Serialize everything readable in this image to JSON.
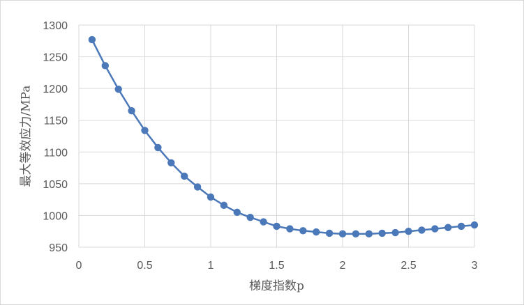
{
  "chart_data": {
    "type": "scatter",
    "title": "",
    "xlabel": "梯度指数p",
    "ylabel": "最大等效应力/MPa",
    "xlim": [
      0,
      3
    ],
    "ylim": [
      950,
      1300
    ],
    "x_ticks": [
      "0",
      "0.5",
      "1",
      "1.5",
      "2",
      "2.5",
      "3"
    ],
    "y_ticks": [
      "950",
      "1000",
      "1050",
      "1100",
      "1150",
      "1200",
      "1250",
      "1300"
    ],
    "grid": true,
    "legend": "none",
    "series": [
      {
        "color": "#4a78b8",
        "x": [
          0.1,
          0.2,
          0.3,
          0.4,
          0.5,
          0.6,
          0.7,
          0.8,
          0.9,
          1.0,
          1.1,
          1.2,
          1.3,
          1.4,
          1.5,
          1.6,
          1.7,
          1.8,
          1.9,
          2.0,
          2.1,
          2.2,
          2.3,
          2.4,
          2.5,
          2.6,
          2.7,
          2.8,
          2.9,
          3.0
        ],
        "y": [
          1277,
          1236,
          1199,
          1165,
          1134,
          1107,
          1083,
          1062,
          1045,
          1029,
          1016,
          1005,
          997,
          990,
          983,
          979,
          976,
          974,
          972,
          971,
          971,
          971,
          972,
          973,
          975,
          977,
          979,
          981,
          983,
          985
        ]
      }
    ]
  }
}
